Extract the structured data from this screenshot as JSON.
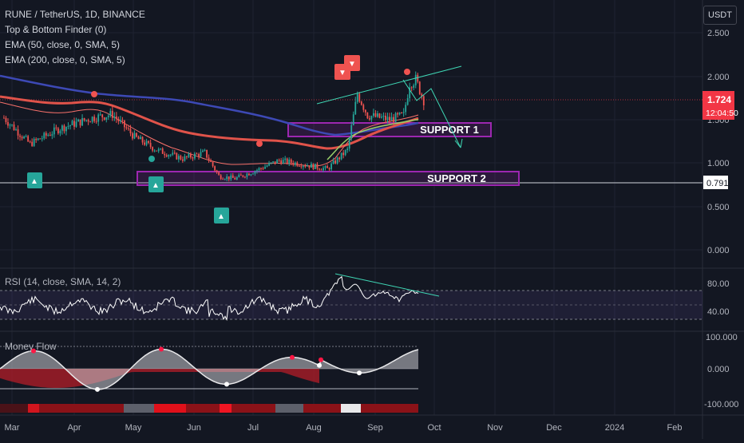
{
  "legend": {
    "symbol": "RUNE / TetherUS, 1D, BINANCE",
    "indicator1": "Top & Bottom Finder (0)",
    "indicator2": "EMA (50, close, 0, SMA, 5)",
    "indicator3": "EMA (200, close, 0, SMA, 5)"
  },
  "currency_button": "USDT",
  "price_axis": {
    "ticks": [
      "2.500",
      "2.000",
      "1.500",
      "1.000",
      "0.500",
      "0.000"
    ],
    "last_price": "1.724",
    "countdown": "12:04:50",
    "support_level": "0.791"
  },
  "support_boxes": [
    "SUPPORT 1",
    "SUPPORT 2"
  ],
  "rsi": {
    "label": "RSI (14, close, SMA, 14, 2)",
    "ticks": [
      "80.00",
      "40.00"
    ]
  },
  "money_flow": {
    "label": "Money Flow",
    "ticks": [
      "100.000",
      "0.000",
      "-100.000"
    ]
  },
  "time_axis": [
    "Mar",
    "Apr",
    "May",
    "Jun",
    "Jul",
    "Aug",
    "Sep",
    "Oct",
    "Nov",
    "Dec",
    "2024",
    "Feb"
  ],
  "markers": {
    "top_glyph": "▼",
    "bottom_glyph": "▲"
  },
  "colors": {
    "background": "#131722",
    "up": "#26a69a",
    "down": "#ef5350",
    "ema50": "#e0534a",
    "ema200": "#3d49b5",
    "support_box": "#9c27b0",
    "rsi_line": "#ffffff",
    "trend_line": "#3fd6b4",
    "last_price_tag": "#f23645"
  },
  "chart_data": {
    "type": "candlestick",
    "symbol": "RUNE / TetherUS",
    "interval": "1D",
    "close_samples": [
      {
        "date": "2023-02-25",
        "close": 1.52
      },
      {
        "date": "2023-03-10",
        "close": 1.22
      },
      {
        "date": "2023-03-25",
        "close": 1.4
      },
      {
        "date": "2023-04-10",
        "close": 1.52
      },
      {
        "date": "2023-04-20",
        "close": 1.56
      },
      {
        "date": "2023-05-01",
        "close": 1.3
      },
      {
        "date": "2023-05-12",
        "close": 1.15
      },
      {
        "date": "2023-05-25",
        "close": 1.05
      },
      {
        "date": "2023-06-05",
        "close": 1.12
      },
      {
        "date": "2023-06-12",
        "close": 0.85
      },
      {
        "date": "2023-06-20",
        "close": 0.82
      },
      {
        "date": "2023-07-01",
        "close": 0.92
      },
      {
        "date": "2023-07-12",
        "close": 1.03
      },
      {
        "date": "2023-07-25",
        "close": 0.98
      },
      {
        "date": "2023-08-05",
        "close": 0.93
      },
      {
        "date": "2023-08-15",
        "close": 1.15
      },
      {
        "date": "2023-08-20",
        "close": 1.8
      },
      {
        "date": "2023-08-25",
        "close": 1.55
      },
      {
        "date": "2023-09-05",
        "close": 1.5
      },
      {
        "date": "2023-09-12",
        "close": 1.55
      },
      {
        "date": "2023-09-15",
        "close": 1.92
      },
      {
        "date": "2023-09-18",
        "close": 1.96
      },
      {
        "date": "2023-09-22",
        "close": 1.724
      }
    ],
    "ema50_samples": [
      {
        "date": "2023-02-25",
        "value": 1.42
      },
      {
        "date": "2023-03-20",
        "value": 1.36
      },
      {
        "date": "2023-04-15",
        "value": 1.45
      },
      {
        "date": "2023-05-05",
        "value": 1.38
      },
      {
        "date": "2023-06-01",
        "value": 1.18
      },
      {
        "date": "2023-07-01",
        "value": 1.06
      },
      {
        "date": "2023-08-01",
        "value": 0.98
      },
      {
        "date": "2023-08-25",
        "value": 1.25
      },
      {
        "date": "2023-09-22",
        "value": 1.52
      }
    ],
    "ema200_samples": [
      {
        "date": "2023-02-25",
        "value": 1.98
      },
      {
        "date": "2023-04-01",
        "value": 1.86
      },
      {
        "date": "2023-05-15",
        "value": 1.68
      },
      {
        "date": "2023-07-01",
        "value": 1.48
      },
      {
        "date": "2023-08-10",
        "value": 1.38
      },
      {
        "date": "2023-09-22",
        "value": 1.47
      }
    ],
    "support_zones": [
      {
        "name": "SUPPORT 1",
        "from": 1.33,
        "to": 1.48
      },
      {
        "name": "SUPPORT 2",
        "from": 0.72,
        "to": 0.88
      }
    ],
    "support_level": 0.791,
    "last_price": 1.724,
    "ylim": [
      -0.05,
      2.65
    ],
    "rsi_ticks": [
      80,
      40
    ],
    "money_flow_ticks": [
      100,
      0,
      -100
    ]
  }
}
